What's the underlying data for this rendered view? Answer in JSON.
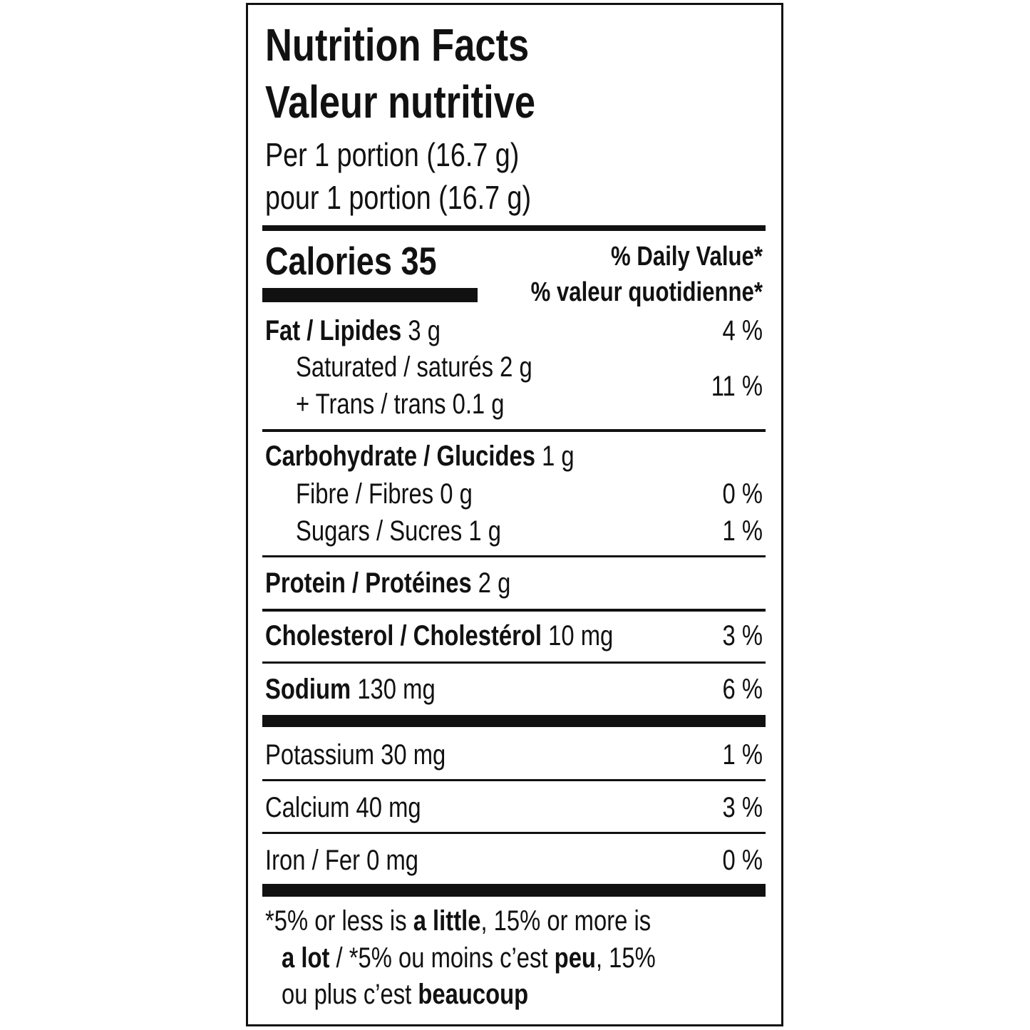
{
  "header": {
    "title_en": "Nutrition Facts",
    "title_fr": "Valeur nutritive",
    "serving_en": "Per 1 portion (16.7 g)",
    "serving_fr": "pour 1 portion (16.7 g)"
  },
  "calories": "Calories 35",
  "daily_value": [
    "% Daily Value*",
    "% valeur quotidienne*"
  ],
  "lines": [
    {
      "parts": [
        {
          "text": "Fat / Lipides",
          "bold": true
        },
        {
          "text": " 3 g"
        }
      ],
      "dv": "4 %"
    },
    {
      "parts": [
        {
          "text": "Saturated / saturés 2 g"
        }
      ],
      "dv": "11 %"
    },
    {
      "parts": [
        {
          "text": "+ Trans / trans 0.1 g"
        }
      ]
    },
    {
      "parts": [
        {
          "text": "Carbohydrate / Glucides",
          "bold": true
        },
        {
          "text": " 1 g"
        }
      ]
    },
    {
      "parts": [
        {
          "text": "Fibre / Fibres 0 g"
        }
      ],
      "dv": "0 %"
    },
    {
      "parts": [
        {
          "text": "Sugars / Sucres 1 g"
        }
      ],
      "dv": "1 %"
    },
    {
      "parts": [
        {
          "text": "Protein / Protéines",
          "bold": true
        },
        {
          "text": " 2 g"
        }
      ]
    },
    {
      "parts": [
        {
          "text": "Cholesterol / Cholestérol",
          "bold": true
        },
        {
          "text": " 10 mg"
        }
      ],
      "dv": "3 %"
    },
    {
      "parts": [
        {
          "text": "Sodium",
          "bold": true
        },
        {
          "text": " 130 mg"
        }
      ],
      "dv": "6 %"
    },
    {
      "parts": [
        {
          "text": "Potassium 30 mg"
        }
      ],
      "dv": "1 %"
    },
    {
      "parts": [
        {
          "text": "Calcium 40 mg"
        }
      ],
      "dv": "3 %"
    },
    {
      "parts": [
        {
          "text": "Iron / Fer 0 mg"
        }
      ],
      "dv": "0 %"
    }
  ],
  "footnote": [
    [
      {
        "text": "*5% or less is "
      },
      {
        "text": "a little",
        "bold": true
      },
      {
        "text": ", 15% or more is"
      }
    ],
    [
      {
        "text": "a lot",
        "bold": true
      },
      {
        "text": " / *5% ou moins c’est "
      },
      {
        "text": "peu",
        "bold": true
      },
      {
        "text": ", 15%"
      }
    ],
    [
      {
        "text": "ou plus c’est "
      },
      {
        "text": "beaucoup",
        "bold": true
      }
    ]
  ]
}
